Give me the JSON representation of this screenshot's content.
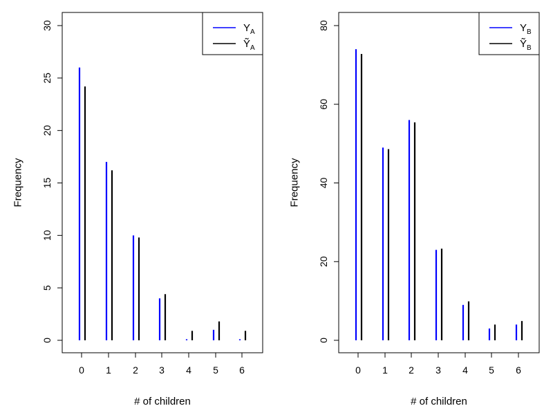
{
  "chart_data": [
    {
      "type": "bar",
      "style": "spikes",
      "xlabel": "# of children",
      "ylabel": "Frequency",
      "categories": [
        "0",
        "1",
        "2",
        "3",
        "4",
        "5",
        "6"
      ],
      "yticks": [
        "0",
        "5",
        "10",
        "15",
        "20",
        "25",
        "30"
      ],
      "ylim": [
        0,
        31
      ],
      "legend_position": "top-right",
      "series": [
        {
          "name": "Y",
          "subscript": "A",
          "tilde": false,
          "color": "#0000FF",
          "values": [
            26,
            17,
            10,
            4,
            0.1,
            1,
            0.1
          ]
        },
        {
          "name": "Ỹ",
          "subscript": "A",
          "tilde": true,
          "color": "#000000",
          "values": [
            24.2,
            16.2,
            9.8,
            4.4,
            0.9,
            1.8,
            0.9
          ]
        }
      ]
    },
    {
      "type": "bar",
      "style": "spikes",
      "xlabel": "# of children",
      "ylabel": "Frequency",
      "categories": [
        "0",
        "1",
        "2",
        "3",
        "4",
        "5",
        "6"
      ],
      "yticks": [
        "0",
        "20",
        "40",
        "60",
        "80"
      ],
      "ylim": [
        0,
        83
      ],
      "legend_position": "top-right",
      "series": [
        {
          "name": "Y",
          "subscript": "B",
          "tilde": false,
          "color": "#0000FF",
          "values": [
            74,
            49,
            56,
            23,
            9,
            3,
            4
          ]
        },
        {
          "name": "Ỹ",
          "subscript": "B",
          "tilde": true,
          "color": "#000000",
          "values": [
            72.8,
            48.6,
            55.4,
            23.3,
            9.9,
            4.0,
            4.9
          ]
        }
      ]
    }
  ]
}
